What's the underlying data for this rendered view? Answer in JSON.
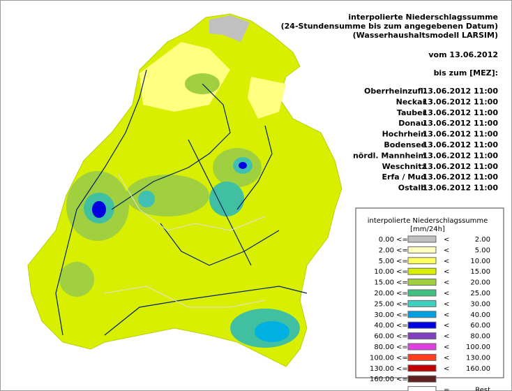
{
  "header": {
    "lines": [
      "interpolierte Niederschlagssumme",
      "(24-Stundensumme bis zum angegebenen Datum)",
      "(Wasserhaushaltsmodell LARSIM)"
    ],
    "date": "vom 13.06.2012",
    "until": "bis zum [MEZ]:"
  },
  "catchments": [
    {
      "name": "Oberrheinzufl.",
      "time": "13.06.2012 11:00"
    },
    {
      "name": "Neckar",
      "time": "13.06.2012 11:00"
    },
    {
      "name": "Tauber",
      "time": "13.06.2012 11:00"
    },
    {
      "name": "Donau",
      "time": "13.06.2012 11:00"
    },
    {
      "name": "Hochrhein",
      "time": "13.06.2012 11:00"
    },
    {
      "name": "Bodensee",
      "time": "13.06.2012 11:00"
    },
    {
      "name": "nördl. Mannheim",
      "time": "13.06.2012 11:00"
    },
    {
      "name": "Weschnitz",
      "time": "13.06.2012 11:00"
    },
    {
      "name": "Erfa / Mud",
      "time": "13.06.2012 11:00"
    },
    {
      "name": "Ostalb",
      "time": "13.06.2012 11:00"
    }
  ],
  "legend": {
    "title": "interpolierte Niederschlagssumme",
    "unit": "[mm/24h]",
    "rows": [
      {
        "from": "0.00",
        "op1": "<=",
        "op2": "<",
        "to": "2.00",
        "color": "#c0c0c0"
      },
      {
        "from": "2.00",
        "op1": "<=",
        "op2": "<",
        "to": "5.00",
        "color": "#ffffc0"
      },
      {
        "from": "5.00",
        "op1": "<=",
        "op2": "<",
        "to": "10.00",
        "color": "#ffff60"
      },
      {
        "from": "10.00",
        "op1": "<=",
        "op2": "<",
        "to": "15.00",
        "color": "#d8f000"
      },
      {
        "from": "15.00",
        "op1": "<=",
        "op2": "<",
        "to": "20.00",
        "color": "#a0d040"
      },
      {
        "from": "20.00",
        "op1": "<=",
        "op2": "<",
        "to": "25.00",
        "color": "#40c080"
      },
      {
        "from": "25.00",
        "op1": "<=",
        "op2": "<",
        "to": "30.00",
        "color": "#40d0c0"
      },
      {
        "from": "30.00",
        "op1": "<=",
        "op2": "<",
        "to": "40.00",
        "color": "#00a0e0"
      },
      {
        "from": "40.00",
        "op1": "<=",
        "op2": "<",
        "to": "60.00",
        "color": "#0000e0"
      },
      {
        "from": "60.00",
        "op1": "<=",
        "op2": "<",
        "to": "80.00",
        "color": "#8040c0"
      },
      {
        "from": "80.00",
        "op1": "<=",
        "op2": "<",
        "to": "100.00",
        "color": "#e040e0"
      },
      {
        "from": "100.00",
        "op1": "<=",
        "op2": "<",
        "to": "130.00",
        "color": "#ff4020"
      },
      {
        "from": "130.00",
        "op1": "<=",
        "op2": "<",
        "to": "160.00",
        "color": "#c00000"
      },
      {
        "from": "160.00",
        "op1": "<=",
        "color": "#602020"
      },
      {
        "op2": "=",
        "to": "Rest",
        "color": "#ffffff"
      }
    ]
  }
}
